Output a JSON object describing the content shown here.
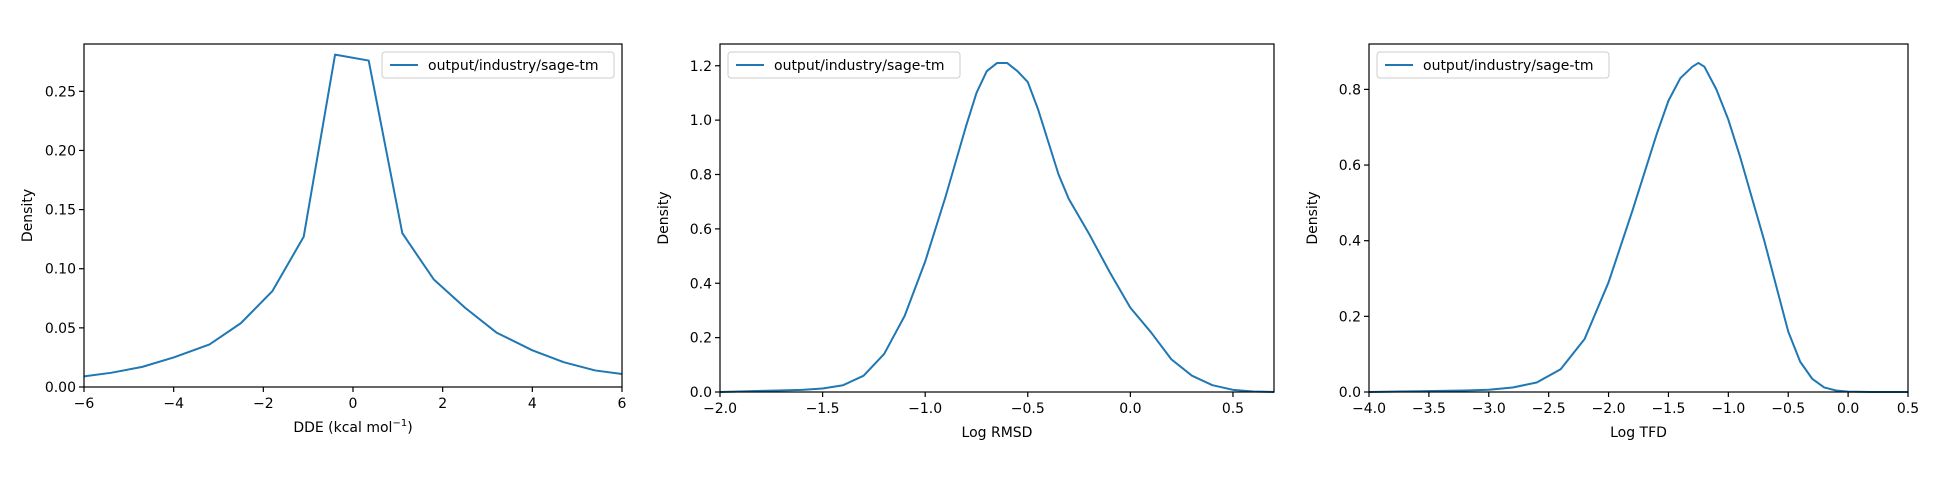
{
  "colors": {
    "line": "#1f77b4",
    "axis": "#000000",
    "legend_border": "#cccccc",
    "background": "#ffffff"
  },
  "chart_data": [
    {
      "type": "line",
      "xlabel": "DDE (kcal mol",
      "xlabel_sup": "−1",
      "xlabel_suffix": ")",
      "ylabel": "Density",
      "xlim": [
        -6,
        6
      ],
      "ylim": [
        0,
        0.29
      ],
      "xticks": [
        -6,
        -4,
        -2,
        0,
        2,
        4,
        6
      ],
      "xtick_labels": [
        "−6",
        "−4",
        "−2",
        "0",
        "2",
        "4",
        "6"
      ],
      "yticks": [
        0.0,
        0.05,
        0.1,
        0.15,
        0.2,
        0.25
      ],
      "ytick_labels": [
        "0.00",
        "0.05",
        "0.10",
        "0.15",
        "0.20",
        "0.25"
      ],
      "grid": false,
      "legend_position": "top-right",
      "series": [
        {
          "name": "output/industry/sage-tm",
          "x": [
            -6,
            -5.4,
            -4.7,
            -4.0,
            -3.2,
            -2.5,
            -1.8,
            -1.1,
            -0.4,
            0.35,
            1.1,
            1.8,
            2.5,
            3.2,
            4.0,
            4.7,
            5.4,
            6.0
          ],
          "y": [
            0.009,
            0.012,
            0.017,
            0.025,
            0.036,
            0.054,
            0.081,
            0.127,
            0.281,
            0.276,
            0.13,
            0.091,
            0.067,
            0.046,
            0.031,
            0.021,
            0.014,
            0.011
          ]
        }
      ]
    },
    {
      "type": "line",
      "xlabel": "Log RMSD",
      "ylabel": "Density",
      "xlim": [
        -2.0,
        0.7
      ],
      "ylim": [
        0,
        1.28
      ],
      "xticks": [
        -2.0,
        -1.5,
        -1.0,
        -0.5,
        0.0,
        0.5
      ],
      "xtick_labels": [
        "−2.0",
        "−1.5",
        "−1.0",
        "−0.5",
        "0.0",
        "0.5"
      ],
      "yticks": [
        0.0,
        0.2,
        0.4,
        0.6,
        0.8,
        1.0,
        1.2
      ],
      "ytick_labels": [
        "0.0",
        "0.2",
        "0.4",
        "0.6",
        "0.8",
        "1.0",
        "1.2"
      ],
      "grid": false,
      "legend_position": "top-left",
      "series": [
        {
          "name": "output/industry/sage-tm",
          "x": [
            -2.0,
            -1.8,
            -1.6,
            -1.5,
            -1.4,
            -1.3,
            -1.2,
            -1.1,
            -1.0,
            -0.9,
            -0.8,
            -0.75,
            -0.7,
            -0.65,
            -0.6,
            -0.55,
            -0.5,
            -0.45,
            -0.4,
            -0.35,
            -0.3,
            -0.2,
            -0.1,
            0.0,
            0.1,
            0.2,
            0.3,
            0.4,
            0.5,
            0.6,
            0.7
          ],
          "y": [
            0.0,
            0.004,
            0.008,
            0.013,
            0.025,
            0.06,
            0.14,
            0.28,
            0.48,
            0.72,
            0.98,
            1.1,
            1.18,
            1.21,
            1.21,
            1.18,
            1.14,
            1.04,
            0.92,
            0.8,
            0.71,
            0.58,
            0.44,
            0.31,
            0.22,
            0.12,
            0.06,
            0.025,
            0.008,
            0.002,
            0.0
          ]
        }
      ]
    },
    {
      "type": "line",
      "xlabel": "Log TFD",
      "ylabel": "Density",
      "xlim": [
        -4.0,
        0.5
      ],
      "ylim": [
        0,
        0.92
      ],
      "xticks": [
        -4.0,
        -3.5,
        -3.0,
        -2.5,
        -2.0,
        -1.5,
        -1.0,
        -0.5,
        0.0,
        0.5
      ],
      "xtick_labels": [
        "−4.0",
        "−3.5",
        "−3.0",
        "−2.5",
        "−2.0",
        "−1.5",
        "−1.0",
        "−0.5",
        "0.0",
        "0.5"
      ],
      "yticks": [
        0.0,
        0.2,
        0.4,
        0.6,
        0.8
      ],
      "ytick_labels": [
        "0.0",
        "0.2",
        "0.4",
        "0.6",
        "0.8"
      ],
      "grid": false,
      "legend_position": "top-left",
      "series": [
        {
          "name": "output/industry/sage-tm",
          "x": [
            -4.0,
            -3.6,
            -3.2,
            -3.0,
            -2.8,
            -2.6,
            -2.4,
            -2.2,
            -2.0,
            -1.8,
            -1.6,
            -1.5,
            -1.4,
            -1.3,
            -1.25,
            -1.2,
            -1.1,
            -1.0,
            -0.9,
            -0.8,
            -0.7,
            -0.6,
            -0.5,
            -0.4,
            -0.3,
            -0.2,
            -0.1,
            0.0,
            0.2,
            0.5
          ],
          "y": [
            0.0,
            0.002,
            0.004,
            0.006,
            0.012,
            0.025,
            0.06,
            0.14,
            0.29,
            0.48,
            0.68,
            0.77,
            0.83,
            0.86,
            0.87,
            0.86,
            0.8,
            0.72,
            0.62,
            0.51,
            0.4,
            0.28,
            0.16,
            0.08,
            0.035,
            0.012,
            0.004,
            0.001,
            0.0,
            0.0
          ]
        }
      ]
    }
  ]
}
